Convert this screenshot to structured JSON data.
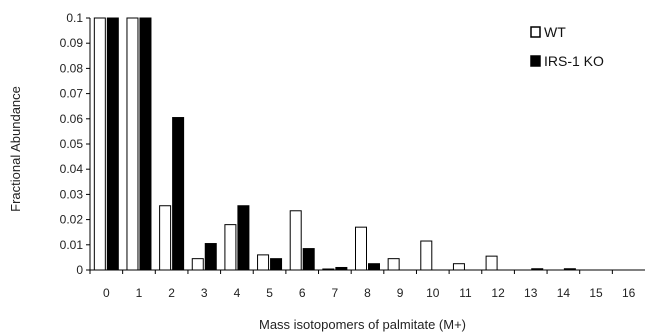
{
  "chart_data": {
    "type": "bar",
    "categories": [
      "0",
      "1",
      "2",
      "3",
      "4",
      "5",
      "6",
      "7",
      "8",
      "9",
      "10",
      "11",
      "12",
      "13",
      "14",
      "15",
      "16"
    ],
    "series": [
      {
        "name": "WT",
        "fill": "#ffffff",
        "stroke": "#000000",
        "values": [
          0.1,
          0.1,
          0.0255,
          0.0045,
          0.018,
          0.006,
          0.0235,
          0.0003,
          0.017,
          0.0045,
          0.0115,
          0.0025,
          0.0055,
          0.0,
          0.0,
          0.0,
          0.0
        ]
      },
      {
        "name": "IRS-1 KO",
        "fill": "#000000",
        "stroke": "#000000",
        "values": [
          0.1,
          0.1,
          0.0605,
          0.0105,
          0.0255,
          0.0045,
          0.0085,
          0.001,
          0.0025,
          0.0,
          0.0,
          0.0,
          0.0,
          0.0005,
          0.0005,
          0.0,
          0.0
        ]
      }
    ],
    "ylabel": "Fractional Abundance",
    "xlabel": "Mass isotopomers of palmitate (M+)",
    "ylim": [
      0,
      0.1
    ],
    "yticks": [
      "0",
      "0.01",
      "0.02",
      "0.03",
      "0.04",
      "0.05",
      "0.06",
      "0.07",
      "0.08",
      "0.09",
      "0.1"
    ],
    "grid": false,
    "legend_position": "top-right"
  }
}
